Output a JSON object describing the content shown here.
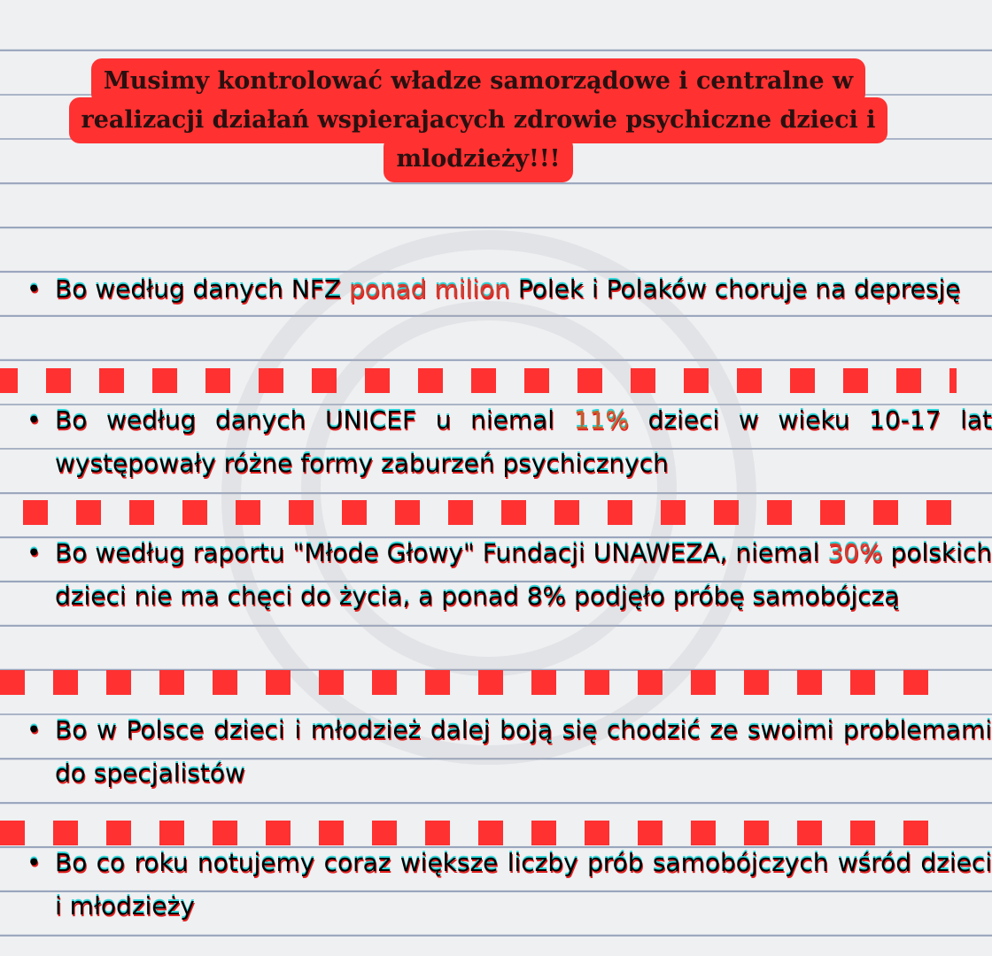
{
  "title": {
    "lines": [
      "Musimy kontrolować władze samorządowe i centralne w",
      "realizacji działań wspierajacych zdrowie psychiczne dzieci i",
      "mlodzieży!!!"
    ]
  },
  "bullets": [
    {
      "before": "Bo według danych NFZ ",
      "highlight": "ponad milion",
      "after": " Polek i Polaków choruje na depresję"
    },
    {
      "before": "Bo według danych UNICEF u niemal ",
      "highlight": "11%",
      "after": " dzieci w wieku 10-17 lat występowały różne formy zaburzeń psychicznych"
    },
    {
      "before": "Bo według raportu \"Młode Głowy\" Fundacji UNAWEZA, niemal ",
      "highlight": "30%",
      "after": " polskich dzieci nie ma chęci do życia, a ponad 8% podjęło próbę samobójczą"
    },
    {
      "text": "Bo w Polsce dzieci i młodzież dalej boją się chodzić ze swoimi problemami do specjalistów"
    },
    {
      "text": "Bo co roku notujemy coraz większe liczby prób samobójczych wśród dzieci i młodzieży"
    }
  ],
  "colors": {
    "title_bg": "#ff3131",
    "dash": "#ff3131",
    "highlight_red": "#d33a2c",
    "highlight_orange": "#c0642a"
  }
}
